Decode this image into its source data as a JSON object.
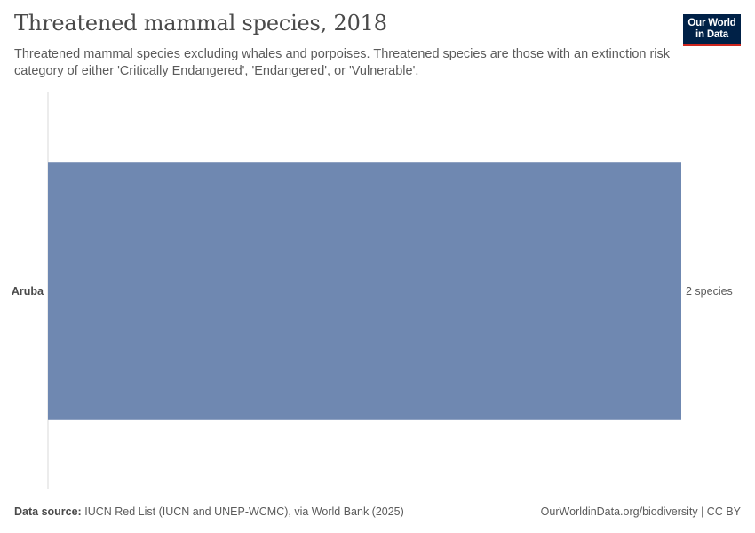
{
  "header": {
    "title": "Threatened mammal species, 2018",
    "subtitle": "Threatened mammal species excluding whales and porpoises. Threatened species are those with an extinction risk category of either 'Critically Endangered', 'Endangered', or 'Vulnerable'.",
    "logo_line1": "Our World",
    "logo_line2": "in Data"
  },
  "chart_data": {
    "type": "bar",
    "orientation": "horizontal",
    "categories": [
      "Aruba"
    ],
    "values": [
      2
    ],
    "value_labels": [
      "2 species"
    ],
    "unit": "species",
    "xlim": [
      0,
      2
    ],
    "grid": false,
    "colors": {
      "bar": "#6f88b1",
      "axis": "#d9d9d9"
    }
  },
  "footer": {
    "source_label": "Data source:",
    "source_text": "IUCN Red List (IUCN and UNEP-WCMC), via World Bank (2025)",
    "right_text": "OurWorldinData.org/biodiversity | CC BY"
  }
}
